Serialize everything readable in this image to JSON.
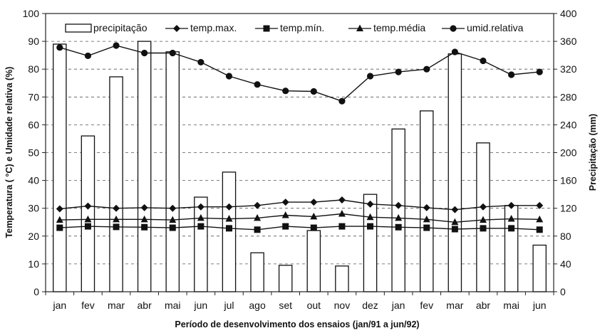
{
  "chart_data": {
    "type": "bar+line",
    "xlabel": "Período de desenvolvimento dos ensaios (jan/91 a jun/92)",
    "ylabel_left": "Temperatura ( °C) e Umidade relativa (%)",
    "ylabel_right": "Precipitação (mm)",
    "ylim_left": [
      0,
      100
    ],
    "ylim_right": [
      0,
      400
    ],
    "yticks_left": [
      "0",
      "10",
      "20",
      "30",
      "40",
      "50",
      "60",
      "70",
      "80",
      "90",
      "100"
    ],
    "yticks_right": [
      "0",
      "40",
      "80",
      "120",
      "160",
      "200",
      "240",
      "280",
      "320",
      "360",
      "400"
    ],
    "categories": [
      "jan",
      "fev",
      "mar",
      "abr",
      "mai",
      "jun",
      "jul",
      "ago",
      "set",
      "out",
      "nov",
      "dez",
      "jan",
      "fev",
      "mar",
      "abr",
      "mai",
      "jun"
    ],
    "grid": "horizontal-dashed",
    "legend_position": "top",
    "bars": {
      "name": "precipitação",
      "axis": "right",
      "values": [
        356,
        224,
        309,
        360,
        345,
        136,
        172,
        56,
        38,
        88,
        37,
        140,
        234,
        260,
        342,
        214,
        124,
        67
      ]
    },
    "series": [
      {
        "name": "temp.max.",
        "marker": "diamond",
        "axis": "left",
        "values": [
          29.8,
          30.8,
          30.0,
          30.2,
          30.0,
          30.5,
          30.5,
          31.0,
          32.2,
          32.2,
          33.0,
          31.5,
          31.0,
          30.2,
          29.5,
          30.5,
          31.0,
          31.0
        ]
      },
      {
        "name": "temp.mín.",
        "marker": "square",
        "axis": "left",
        "values": [
          23.0,
          23.5,
          23.3,
          23.2,
          23.0,
          23.5,
          22.8,
          22.3,
          23.5,
          23.0,
          23.5,
          23.5,
          23.2,
          23.0,
          22.5,
          22.8,
          22.8,
          22.3
        ]
      },
      {
        "name": "temp.média",
        "marker": "triangle",
        "axis": "left",
        "values": [
          25.8,
          26.0,
          26.0,
          26.0,
          25.8,
          26.5,
          26.2,
          26.5,
          27.5,
          27.0,
          28.0,
          26.8,
          26.5,
          26.0,
          25.0,
          25.8,
          26.2,
          26.0
        ]
      },
      {
        "name": "umid.relativa",
        "marker": "circle",
        "axis": "left",
        "values": [
          87.8,
          84.8,
          88.5,
          85.8,
          85.8,
          82.5,
          77.5,
          74.5,
          72.2,
          72.0,
          68.5,
          77.5,
          79.0,
          80.0,
          86.2,
          83.0,
          78.0,
          79.0
        ]
      }
    ]
  }
}
